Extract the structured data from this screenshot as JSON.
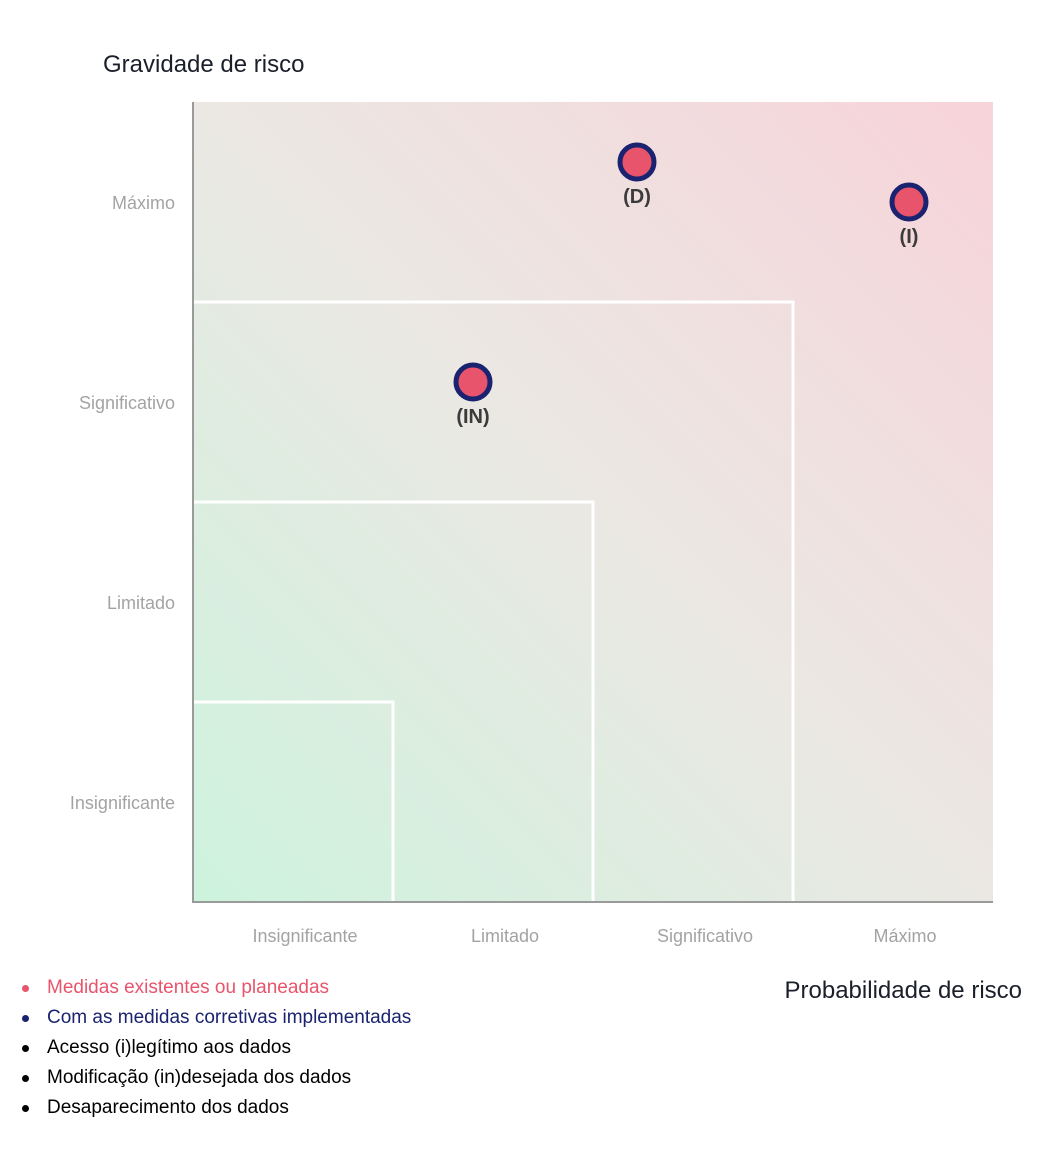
{
  "chart_data": {
    "type": "scatter",
    "title": "",
    "ylabel": "Gravidade de risco",
    "xlabel": "Probabilidade de risco",
    "x_categories": [
      "Insignificante",
      "Limitado",
      "Significativo",
      "Máximo"
    ],
    "y_categories": [
      "Insignificante",
      "Limitado",
      "Significativo",
      "Máximo"
    ],
    "xlim": [
      0,
      4
    ],
    "ylim": [
      0,
      4
    ],
    "grid": false,
    "zones": [
      1,
      2,
      3
    ],
    "points": [
      {
        "label": "(D)",
        "x": 2.22,
        "y": 3.7
      },
      {
        "label": "(I)",
        "x": 3.58,
        "y": 3.5
      },
      {
        "label": "(IN)",
        "x": 1.4,
        "y": 2.6
      }
    ],
    "marker": {
      "fill": "#e8546b",
      "stroke": "#1a2370"
    },
    "gradient": {
      "low": "#cdf3dd",
      "mid": "#ebe8e3",
      "high": "#f7d3da"
    },
    "legend": {
      "position": "bottom-left",
      "items": [
        {
          "text": "Medidas existentes ou planeadas",
          "color": "#e8546b"
        },
        {
          "text": "Com as medidas corretivas implementadas",
          "color": "#1a2370"
        },
        {
          "text": "Acesso (i)legítimo aos dados",
          "color": "#000000"
        },
        {
          "text": "Modificação (in)desejada dos dados",
          "color": "#000000"
        },
        {
          "text": "Desaparecimento dos dados",
          "color": "#000000"
        }
      ]
    }
  }
}
